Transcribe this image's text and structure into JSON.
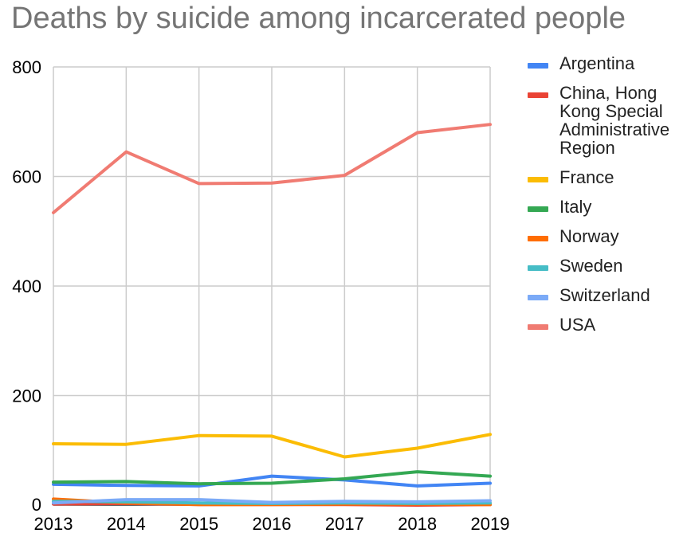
{
  "chart_data": {
    "type": "line",
    "title": "Deaths by suicide among incarcerated people",
    "xlabel": "",
    "ylabel": "",
    "x": [
      "2013",
      "2014",
      "2015",
      "2016",
      "2017",
      "2018",
      "2019"
    ],
    "ylim": [
      0,
      800
    ],
    "yticks": [
      0,
      200,
      400,
      600,
      800
    ],
    "grid": true,
    "legend_position": "right",
    "series": [
      {
        "name": "Argentina",
        "color": "#4285f4",
        "values": [
          38,
          36,
          35,
          53,
          46,
          35,
          40
        ]
      },
      {
        "name": "China, Hong Kong Special Administrative Region",
        "color": "#ea4335",
        "values": [
          2,
          3,
          1,
          1,
          1,
          0,
          1
        ]
      },
      {
        "name": "France",
        "color": "#fbbc04",
        "values": [
          112,
          111,
          127,
          126,
          88,
          104,
          129
        ]
      },
      {
        "name": "Italy",
        "color": "#34a853",
        "values": [
          42,
          43,
          39,
          40,
          48,
          61,
          53
        ]
      },
      {
        "name": "Norway",
        "color": "#ff6d01",
        "values": [
          11,
          4,
          1,
          1,
          2,
          2,
          1
        ]
      },
      {
        "name": "Sweden",
        "color": "#46bdc6",
        "values": [
          7,
          6,
          4,
          3,
          4,
          3,
          4
        ]
      },
      {
        "name": "Switzerland",
        "color": "#7baaf7",
        "values": [
          4,
          10,
          10,
          5,
          7,
          6,
          8
        ]
      },
      {
        "name": "USA",
        "color": "#f07b72",
        "values": [
          534,
          645,
          587,
          588,
          602,
          680,
          695
        ]
      }
    ]
  }
}
